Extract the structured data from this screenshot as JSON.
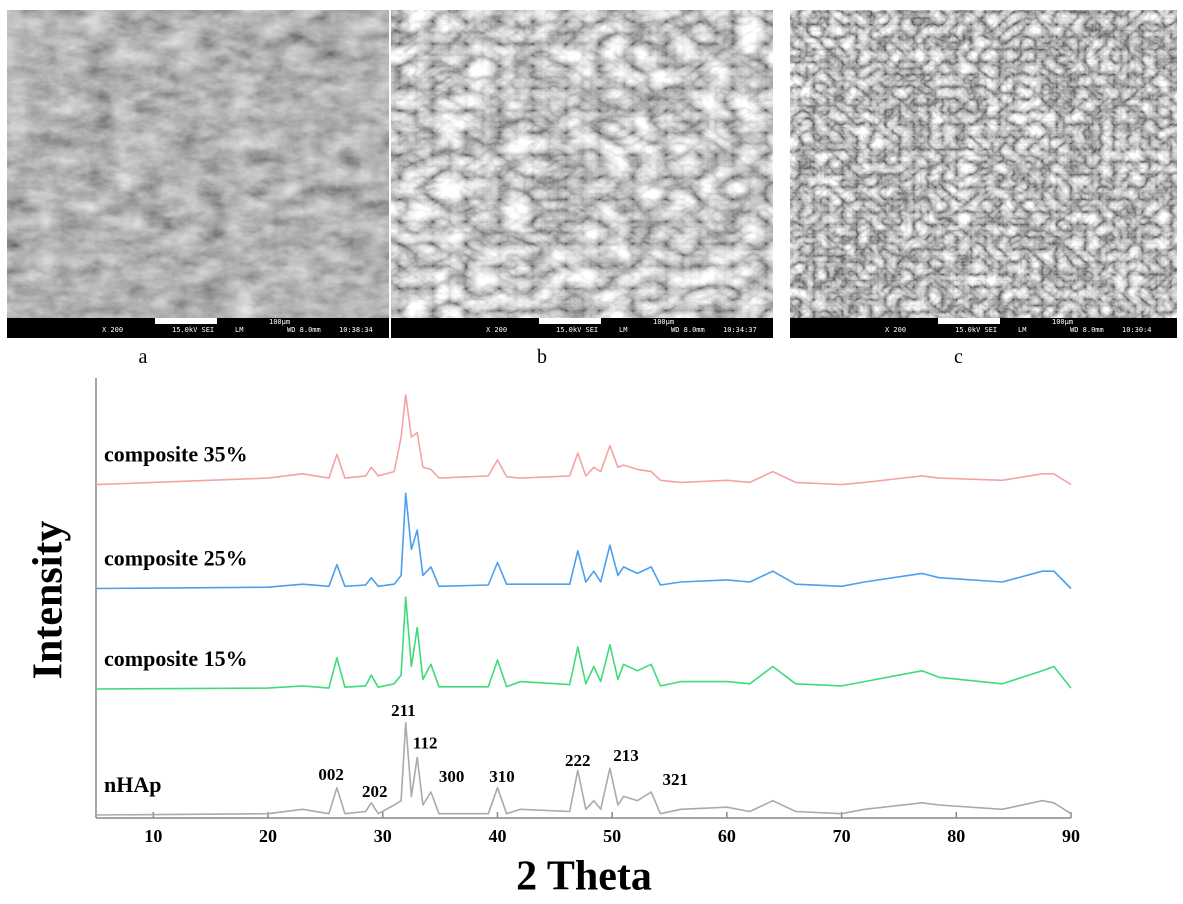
{
  "images": [
    {
      "label": "a",
      "magnification": "X 200",
      "voltage": "15.0kV SEI",
      "mode": "LM",
      "wd": "WD 8.0mm",
      "time": "10:38:34",
      "scale": "100µm"
    },
    {
      "label": "b",
      "magnification": "X 200",
      "voltage": "15.0kV SEI",
      "mode": "LM",
      "wd": "WD 8.0mm",
      "time": "10:34:37",
      "scale": "100µm"
    },
    {
      "label": "c",
      "magnification": "X 200",
      "voltage": "15.0kV SEI",
      "mode": "LM",
      "wd": "WD 8.0mm",
      "time": "10:30:4",
      "scale": "100µm"
    }
  ],
  "chart_data": {
    "type": "line",
    "xlabel": "2 Theta",
    "ylabel": "Intensity",
    "xlim": [
      5,
      90
    ],
    "xticks": [
      10,
      20,
      30,
      40,
      50,
      60,
      70,
      80,
      90
    ],
    "ylim": [
      0,
      100
    ],
    "x": [
      5,
      20,
      23,
      25.3,
      26,
      26.7,
      28.5,
      29,
      29.6,
      31,
      31.6,
      32,
      32.5,
      33,
      33.5,
      34.2,
      34.9,
      39.2,
      40,
      40.8,
      42,
      46.3,
      47,
      47.7,
      48.4,
      49,
      49.8,
      50.5,
      51,
      52.2,
      53.4,
      54.2,
      56,
      60,
      62,
      64,
      66,
      70,
      72,
      77,
      78.5,
      84,
      87.5,
      88.5,
      90
    ],
    "series": [
      {
        "name": "composite 35%",
        "color": "#f4a3a3",
        "values": [
          77,
          78.5,
          79.5,
          78.5,
          84,
          78.5,
          79,
          81,
          79,
          80,
          88,
          97.7,
          88,
          89,
          81,
          80.5,
          78.5,
          79,
          82.7,
          78.8,
          78.5,
          79,
          84.3,
          79,
          81,
          80,
          86,
          81,
          81.5,
          80.5,
          80,
          78,
          77.5,
          78,
          77.5,
          80,
          77.5,
          77,
          77.5,
          79,
          78.5,
          78,
          79.5,
          79.5,
          77
        ]
      },
      {
        "name": "composite 25%",
        "color": "#4aa0ee",
        "values": [
          53,
          53.3,
          54,
          53.5,
          58.5,
          53.5,
          53.8,
          55.5,
          53.5,
          54,
          56,
          75,
          62,
          66.5,
          56,
          58,
          53.5,
          53.8,
          59,
          54,
          54,
          54,
          61.7,
          54.5,
          57,
          54.5,
          63,
          56,
          58,
          56.5,
          58,
          53.8,
          54.5,
          55,
          54.5,
          57,
          54,
          53.5,
          54.5,
          56.5,
          55.5,
          54.5,
          57,
          57,
          53
        ]
      },
      {
        "name": "composite 15%",
        "color": "#3ddc78",
        "values": [
          29.8,
          30,
          30.5,
          30,
          37,
          30.2,
          30.5,
          33,
          30.2,
          31,
          33,
          51,
          35,
          44,
          32,
          35.5,
          30.3,
          30.3,
          36.5,
          30.3,
          31.5,
          30.8,
          39.5,
          31,
          35,
          31.5,
          40,
          32,
          35.5,
          34,
          35.5,
          30.5,
          31.5,
          31.5,
          31,
          35,
          31,
          30.5,
          31.5,
          34,
          32.5,
          31,
          34,
          35,
          30
        ]
      },
      {
        "name": "nHAp",
        "color": "#aaaaaa",
        "values": [
          0.7,
          1,
          2,
          1,
          7,
          1,
          1.5,
          3.5,
          1,
          3,
          4,
          22,
          5,
          14,
          3,
          6,
          1,
          1,
          7,
          1,
          2,
          1.5,
          11,
          2,
          4,
          2,
          11.5,
          3,
          5,
          4,
          6,
          1,
          2,
          2.5,
          1.5,
          4,
          1.5,
          1,
          2,
          3.5,
          3,
          2,
          4,
          3.5,
          1
        ]
      }
    ],
    "annotations": [
      {
        "text": "002",
        "x": 25.5,
        "y": 9.7
      },
      {
        "text": "202",
        "x": 29.3,
        "y": 5.8
      },
      {
        "text": "211",
        "x": 31.8,
        "y": 24.5
      },
      {
        "text": "112",
        "x": 33.7,
        "y": 16.9
      },
      {
        "text": "300",
        "x": 36,
        "y": 9.2
      },
      {
        "text": "310",
        "x": 40.4,
        "y": 9.2
      },
      {
        "text": "222",
        "x": 47,
        "y": 12.9
      },
      {
        "text": "213",
        "x": 51.2,
        "y": 14.1
      },
      {
        "text": "321",
        "x": 55.5,
        "y": 8.5
      }
    ]
  }
}
